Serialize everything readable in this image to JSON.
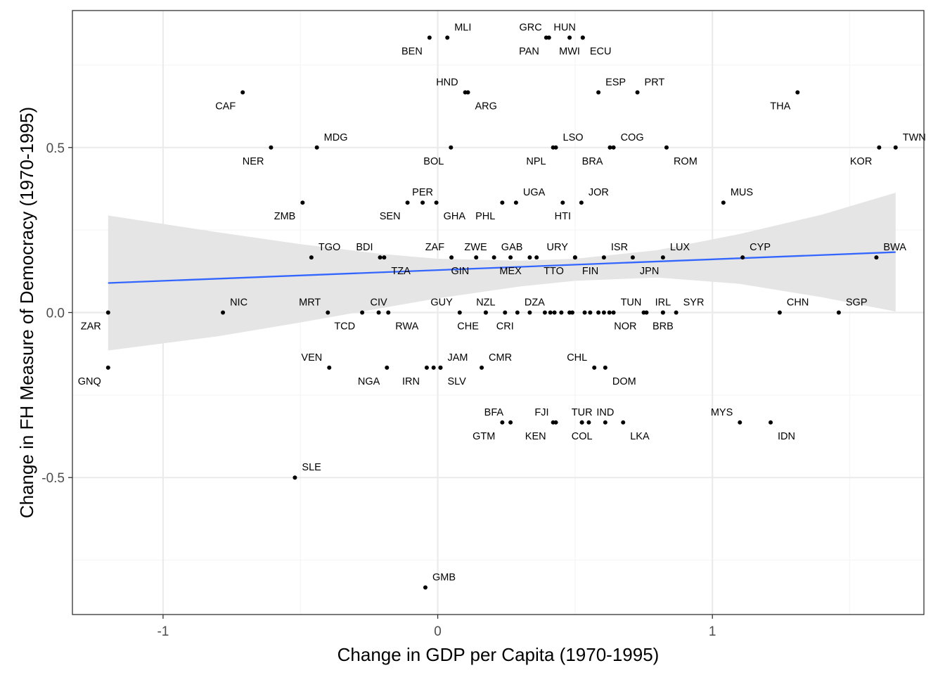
{
  "chart_data": {
    "type": "scatter",
    "xlabel": "Change in GDP per Capita (1970-1995)",
    "ylabel": "Change in FH Measure of Democracy (1970-1995)",
    "xlim": [
      -1.33,
      1.77
    ],
    "ylim": [
      -0.915,
      0.915
    ],
    "x_ticks": [
      -1,
      0,
      1
    ],
    "x_tick_labels": [
      "-1",
      "0",
      "1"
    ],
    "y_ticks": [
      -0.5,
      0,
      0.5
    ],
    "y_tick_labels": [
      "-0.5",
      "0.0",
      "0.5"
    ],
    "x_minor_grid": [
      -0.5,
      0.5,
      1.5
    ],
    "y_minor_grid": [
      -0.75,
      -0.25,
      0.25,
      0.75
    ],
    "grid": true,
    "colors": {
      "points": "#000000",
      "fit_line": "#3366ff",
      "confidence_band": "#e5e5e5",
      "grid_major": "#ebebeb",
      "grid_minor": "#f5f5f5",
      "panel_border": "#333333"
    },
    "fit_line": {
      "x": [
        -1.2,
        1.667
      ],
      "y": [
        0.0895,
        0.183
      ]
    },
    "confidence_band": {
      "x": [
        -1.2,
        -0.8,
        -0.5,
        -0.2,
        0.0,
        0.3,
        0.5,
        0.8,
        1.1,
        1.4,
        1.667
      ],
      "upper": [
        0.294,
        0.243,
        0.207,
        0.177,
        0.163,
        0.157,
        0.163,
        0.189,
        0.238,
        0.297,
        0.363
      ],
      "lower": [
        -0.115,
        -0.072,
        -0.03,
        0.014,
        0.043,
        0.079,
        0.096,
        0.106,
        0.087,
        0.046,
        0.003
      ]
    },
    "points": [
      {
        "x": -0.03,
        "y": 0.833,
        "label": "BEN",
        "pos": "bl"
      },
      {
        "x": 0.035,
        "y": 0.833,
        "label": "MLI",
        "pos": "tr"
      },
      {
        "x": 0.395,
        "y": 0.833,
        "label": "PAN",
        "pos": "bl"
      },
      {
        "x": 0.405,
        "y": 0.833,
        "label": "GRC",
        "pos": "tl"
      },
      {
        "x": 0.48,
        "y": 0.833,
        "label": "MWI",
        "pos": "b"
      },
      {
        "x": 0.528,
        "y": 0.833,
        "label": "HUN",
        "pos": "tl"
      },
      {
        "x": 0.528,
        "y": 0.833,
        "label": "ECU",
        "pos": "br"
      },
      {
        "x": -0.71,
        "y": 0.667,
        "label": "CAF",
        "pos": "bl"
      },
      {
        "x": 0.1,
        "y": 0.667,
        "label": "HND",
        "pos": "tl"
      },
      {
        "x": 0.11,
        "y": 0.667,
        "label": "ARG",
        "pos": "br"
      },
      {
        "x": 0.585,
        "y": 0.667,
        "label": "ESP",
        "pos": "tr"
      },
      {
        "x": 0.727,
        "y": 0.667,
        "label": "PRT",
        "pos": "tr"
      },
      {
        "x": 1.31,
        "y": 0.667,
        "label": "THA",
        "pos": "bl"
      },
      {
        "x": -0.607,
        "y": 0.5,
        "label": "NER",
        "pos": "bl"
      },
      {
        "x": -0.44,
        "y": 0.5,
        "label": "MDG",
        "pos": "tr"
      },
      {
        "x": 0.048,
        "y": 0.5,
        "label": "BOL",
        "pos": "bl"
      },
      {
        "x": 0.42,
        "y": 0.5,
        "label": "NPL",
        "pos": "bl"
      },
      {
        "x": 0.43,
        "y": 0.5,
        "label": "LSO",
        "pos": "tr"
      },
      {
        "x": 0.627,
        "y": 0.5,
        "label": "BRA",
        "pos": "bl"
      },
      {
        "x": 0.64,
        "y": 0.5,
        "label": "COG",
        "pos": "tr"
      },
      {
        "x": 0.833,
        "y": 0.5,
        "label": "ROM",
        "pos": "br"
      },
      {
        "x": 1.607,
        "y": 0.5,
        "label": "KOR",
        "pos": "bl"
      },
      {
        "x": 1.667,
        "y": 0.5,
        "label": "TWN",
        "pos": "tr"
      },
      {
        "x": -0.492,
        "y": 0.333,
        "label": "ZMB",
        "pos": "bl"
      },
      {
        "x": -0.11,
        "y": 0.333,
        "label": "SEN",
        "pos": "bl"
      },
      {
        "x": -0.055,
        "y": 0.333,
        "label": "PER",
        "pos": "t"
      },
      {
        "x": -0.005,
        "y": 0.333,
        "label": "GHA",
        "pos": "br"
      },
      {
        "x": 0.235,
        "y": 0.333,
        "label": "PHL",
        "pos": "bl"
      },
      {
        "x": 0.285,
        "y": 0.333,
        "label": "UGA",
        "pos": "tr"
      },
      {
        "x": 0.455,
        "y": 0.333,
        "label": "HTI",
        "pos": "b"
      },
      {
        "x": 0.523,
        "y": 0.333,
        "label": "JOR",
        "pos": "tr"
      },
      {
        "x": 1.04,
        "y": 0.333,
        "label": "MUS",
        "pos": "tr"
      },
      {
        "x": -0.46,
        "y": 0.167,
        "label": "TGO",
        "pos": "tr"
      },
      {
        "x": -0.21,
        "y": 0.167,
        "label": "BDI",
        "pos": "tl"
      },
      {
        "x": -0.195,
        "y": 0.167,
        "label": "TZA",
        "pos": "br"
      },
      {
        "x": 0.05,
        "y": 0.167,
        "label": "ZAF",
        "pos": "tl"
      },
      {
        "x": 0.14,
        "y": 0.167,
        "label": "GIN",
        "pos": "bl"
      },
      {
        "x": 0.205,
        "y": 0.167,
        "label": "ZWE",
        "pos": "tl"
      },
      {
        "x": 0.265,
        "y": 0.167,
        "label": "MEX",
        "pos": "b"
      },
      {
        "x": 0.335,
        "y": 0.167,
        "label": "GAB",
        "pos": "tl"
      },
      {
        "x": 0.36,
        "y": 0.167,
        "label": "TTO",
        "pos": "br"
      },
      {
        "x": 0.5,
        "y": 0.167,
        "label": "URY",
        "pos": "tl"
      },
      {
        "x": 0.5,
        "y": 0.167,
        "label": "FIN",
        "pos": "br"
      },
      {
        "x": 0.605,
        "y": 0.167,
        "label": "ISR",
        "pos": "tr"
      },
      {
        "x": 0.71,
        "y": 0.167,
        "label": "JPN",
        "pos": "br"
      },
      {
        "x": 0.82,
        "y": 0.167,
        "label": "LUX",
        "pos": "tr"
      },
      {
        "x": 1.11,
        "y": 0.167,
        "label": "CYP",
        "pos": "tr"
      },
      {
        "x": 1.597,
        "y": 0.167,
        "label": "BWA",
        "pos": "tr"
      },
      {
        "x": -1.2,
        "y": 0.0,
        "label": "ZAR",
        "pos": "bl"
      },
      {
        "x": -0.782,
        "y": 0.0,
        "label": "NIC",
        "pos": "tr"
      },
      {
        "x": -0.4,
        "y": 0.0,
        "label": "MRT",
        "pos": "tl"
      },
      {
        "x": -0.275,
        "y": 0.0,
        "label": "TCD",
        "pos": "bl"
      },
      {
        "x": -0.215,
        "y": 0.0,
        "label": "CIV",
        "pos": "t"
      },
      {
        "x": -0.18,
        "y": 0.0,
        "label": "RWA",
        "pos": "br"
      },
      {
        "x": 0.08,
        "y": 0.0,
        "label": "GUY",
        "pos": "tl"
      },
      {
        "x": 0.175,
        "y": 0.0,
        "label": "NZL",
        "pos": "t"
      },
      {
        "x": 0.175,
        "y": 0.0,
        "label": "CHE",
        "pos": "bl"
      },
      {
        "x": 0.245,
        "y": 0.0,
        "label": "CRI",
        "pos": "b"
      },
      {
        "x": 0.29,
        "y": 0.0,
        "label": "DZA",
        "pos": "tr"
      },
      {
        "x": 0.335,
        "y": 0.0,
        "label": "",
        "pos": ""
      },
      {
        "x": 0.39,
        "y": 0.0,
        "label": "",
        "pos": ""
      },
      {
        "x": 0.41,
        "y": 0.0,
        "label": "",
        "pos": ""
      },
      {
        "x": 0.425,
        "y": 0.0,
        "label": "",
        "pos": ""
      },
      {
        "x": 0.45,
        "y": 0.0,
        "label": "",
        "pos": ""
      },
      {
        "x": 0.48,
        "y": 0.0,
        "label": "",
        "pos": ""
      },
      {
        "x": 0.49,
        "y": 0.0,
        "label": "",
        "pos": ""
      },
      {
        "x": 0.535,
        "y": 0.0,
        "label": "",
        "pos": ""
      },
      {
        "x": 0.555,
        "y": 0.0,
        "label": "",
        "pos": ""
      },
      {
        "x": 0.585,
        "y": 0.0,
        "label": "",
        "pos": ""
      },
      {
        "x": 0.605,
        "y": 0.0,
        "label": "",
        "pos": ""
      },
      {
        "x": 0.625,
        "y": 0.0,
        "label": "",
        "pos": ""
      },
      {
        "x": 0.64,
        "y": 0.0,
        "label": "TUN",
        "pos": "tr"
      },
      {
        "x": 0.75,
        "y": 0.0,
        "label": "NOR",
        "pos": "bl"
      },
      {
        "x": 0.76,
        "y": 0.0,
        "label": "",
        "pos": ""
      },
      {
        "x": 0.82,
        "y": 0.0,
        "label": "IRL",
        "pos": "t"
      },
      {
        "x": 0.82,
        "y": 0.0,
        "label": "BRB",
        "pos": "b"
      },
      {
        "x": 0.868,
        "y": 0.0,
        "label": "SYR",
        "pos": "tr"
      },
      {
        "x": 1.245,
        "y": 0.0,
        "label": "CHN",
        "pos": "tr"
      },
      {
        "x": 1.46,
        "y": 0.0,
        "label": "SGP",
        "pos": "tr"
      },
      {
        "x": -1.2,
        "y": -0.167,
        "label": "GNQ",
        "pos": "bl"
      },
      {
        "x": -0.395,
        "y": -0.167,
        "label": "VEN",
        "pos": "tl"
      },
      {
        "x": -0.185,
        "y": -0.167,
        "label": "NGA",
        "pos": "bl"
      },
      {
        "x": -0.04,
        "y": -0.167,
        "label": "IRN",
        "pos": "bl"
      },
      {
        "x": -0.015,
        "y": -0.167,
        "label": "",
        "pos": ""
      },
      {
        "x": 0.01,
        "y": -0.167,
        "label": "JAM",
        "pos": "tr"
      },
      {
        "x": 0.01,
        "y": -0.167,
        "label": "SLV",
        "pos": "br"
      },
      {
        "x": 0.16,
        "y": -0.167,
        "label": "CMR",
        "pos": "tr"
      },
      {
        "x": 0.57,
        "y": -0.167,
        "label": "CHL",
        "pos": "tl"
      },
      {
        "x": 0.61,
        "y": -0.167,
        "label": "DOM",
        "pos": "br"
      },
      {
        "x": 0.235,
        "y": -0.333,
        "label": "GTM",
        "pos": "bl"
      },
      {
        "x": 0.265,
        "y": -0.333,
        "label": "BFA",
        "pos": "tl"
      },
      {
        "x": 0.42,
        "y": -0.333,
        "label": "KEN",
        "pos": "bl"
      },
      {
        "x": 0.43,
        "y": -0.333,
        "label": "FJI",
        "pos": "tl"
      },
      {
        "x": 0.525,
        "y": -0.333,
        "label": "TUR",
        "pos": "t"
      },
      {
        "x": 0.525,
        "y": -0.333,
        "label": "COL",
        "pos": "b"
      },
      {
        "x": 0.55,
        "y": -0.333,
        "label": "",
        "pos": ""
      },
      {
        "x": 0.61,
        "y": -0.333,
        "label": "IND",
        "pos": "t"
      },
      {
        "x": 0.675,
        "y": -0.333,
        "label": "LKA",
        "pos": "br"
      },
      {
        "x": 1.1,
        "y": -0.333,
        "label": "MYS",
        "pos": "tl"
      },
      {
        "x": 1.212,
        "y": -0.333,
        "label": "IDN",
        "pos": "br"
      },
      {
        "x": -0.52,
        "y": -0.5,
        "label": "SLE",
        "pos": "tr"
      },
      {
        "x": -0.045,
        "y": -0.833,
        "label": "GMB",
        "pos": "tr"
      }
    ]
  }
}
